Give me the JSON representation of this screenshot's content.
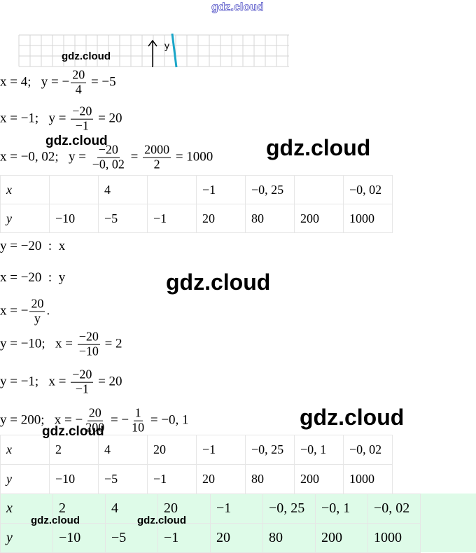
{
  "header": {
    "watermark": "gdz.cloud"
  },
  "graph": {
    "axis_label": "y",
    "watermark": "gdz.cloud"
  },
  "lines": [
    {
      "parts": [
        "x = 4;   y = −",
        {
          "num": "20",
          "den": "4"
        },
        " = −5"
      ]
    },
    {
      "parts": [
        "x = −1;   y = ",
        {
          "num": "−20",
          "den": "−1"
        },
        " = 20"
      ]
    },
    {
      "parts": [
        "x = −0, 02;   y = ",
        {
          "num": "−20",
          "den": "−0, 02"
        },
        " = ",
        {
          "num": "2000",
          "den": "2"
        },
        " = 1000"
      ]
    },
    {
      "parts": [
        "y = −20  :  x"
      ]
    },
    {
      "parts": [
        "x = −20  :  y"
      ]
    },
    {
      "parts": [
        "x = −",
        {
          "num": "20",
          "den": "y"
        },
        "."
      ]
    },
    {
      "parts": [
        "y = −10;   x = ",
        {
          "num": "−20",
          "den": "−10"
        },
        " = 2"
      ]
    },
    {
      "parts": [
        "y = −1;   x = ",
        {
          "num": "−20",
          "den": "−1"
        },
        " = 20"
      ]
    },
    {
      "parts": [
        "y = 200;   x = −",
        {
          "num": "20",
          "den": "200"
        },
        " = −",
        {
          "num": "1",
          "den": "10"
        },
        " = −0, 1"
      ]
    }
  ],
  "tables": [
    {
      "rows": [
        [
          "x",
          null,
          "4",
          null,
          "−1",
          "−0, 25",
          null,
          "−0, 02"
        ],
        [
          "y",
          "−10",
          "−5",
          "−1",
          "20",
          "80",
          "200",
          "1000"
        ]
      ]
    },
    {
      "rows": [
        [
          "x",
          "2",
          "4",
          "20",
          "−1",
          "−0, 25",
          "−0, 1",
          "−0, 02"
        ],
        [
          "y",
          "−10",
          "−5",
          "−1",
          "20",
          "80",
          "200",
          "1000"
        ]
      ]
    },
    {
      "rows": [
        [
          "x",
          "2",
          "4",
          "20",
          "−1",
          "−0, 25",
          "−0, 1",
          "−0, 02"
        ],
        [
          "y",
          "−10",
          "−5",
          "−1",
          "20",
          "80",
          "200",
          "1000"
        ]
      ]
    }
  ],
  "watermarks": [
    "gdz.cloud",
    "gdz.cloud",
    "gdz.cloud",
    "gdz.cloud",
    "gdz.cloud",
    "gdz.cloud",
    "gdz.cloud"
  ]
}
